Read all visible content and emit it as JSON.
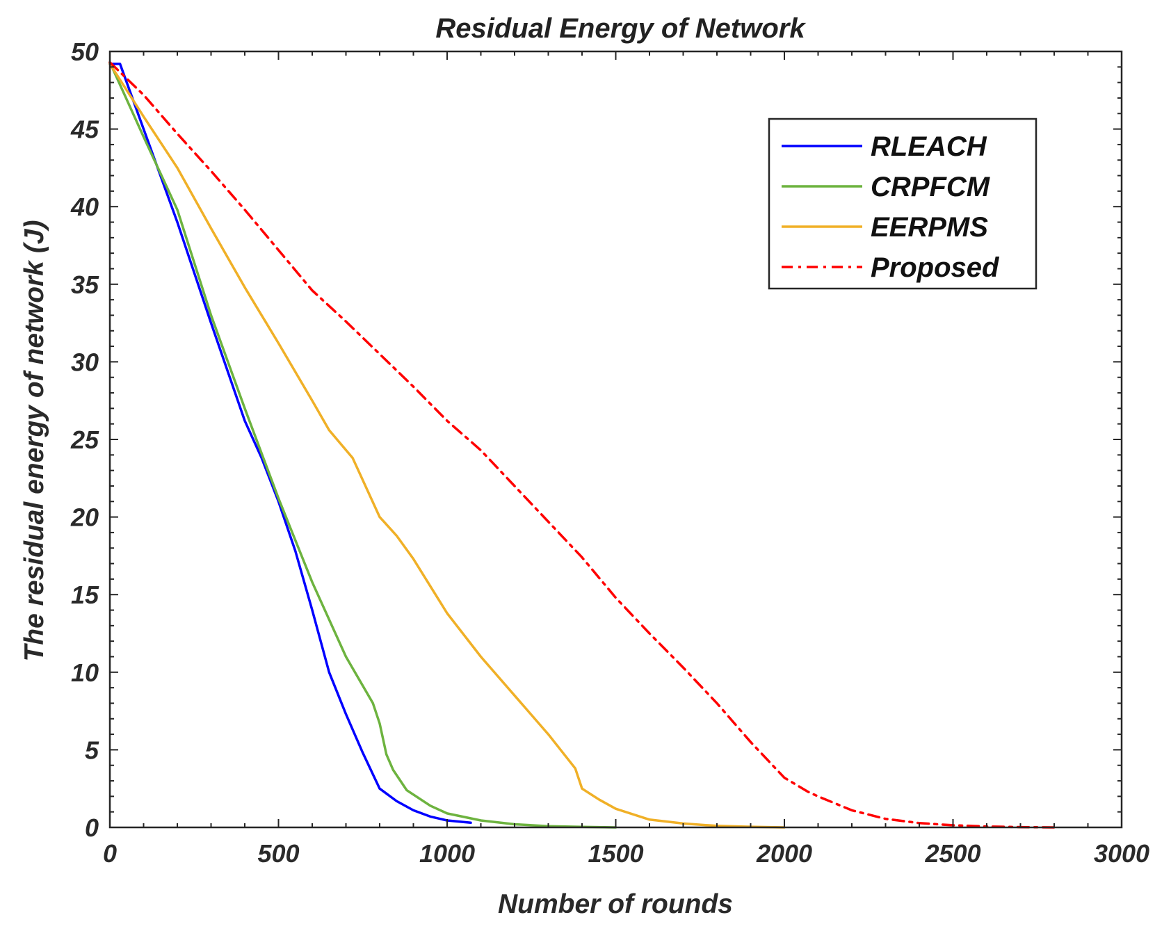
{
  "chart_data": {
    "type": "line",
    "title": "Residual Energy of Network",
    "xlabel": "Number of rounds",
    "ylabel": "The residual energy of network (J)",
    "xlim": [
      0,
      3000
    ],
    "ylim": [
      0,
      50
    ],
    "xticks": [
      0,
      500,
      1000,
      1500,
      2000,
      2500,
      3000
    ],
    "yticks": [
      0,
      5,
      10,
      15,
      20,
      25,
      30,
      35,
      40,
      45,
      50
    ],
    "xtick_labels": [
      "0",
      "500",
      "1000",
      "1500",
      "2000",
      "2500",
      "3000"
    ],
    "ytick_labels": [
      "0",
      "5",
      "10",
      "15",
      "20",
      "25",
      "30",
      "35",
      "40",
      "45",
      "50"
    ],
    "grid": false,
    "legend_position": "top-right",
    "series": [
      {
        "name": "RLEACH",
        "color": "#0000ff",
        "style": "solid",
        "x": [
          0,
          30,
          100,
          200,
          300,
          400,
          450,
          500,
          550,
          600,
          650,
          700,
          750,
          800,
          850,
          900,
          950,
          1000,
          1070
        ],
        "y": [
          49.2,
          49.2,
          45,
          39,
          32.5,
          26.2,
          23.8,
          21,
          17.8,
          14,
          10,
          7.3,
          4.8,
          2.5,
          1.7,
          1.1,
          0.7,
          0.45,
          0.3
        ]
      },
      {
        "name": "CRPFCM",
        "color": "#6db33f",
        "style": "solid",
        "x": [
          0,
          100,
          200,
          300,
          400,
          500,
          600,
          700,
          780,
          800,
          820,
          840,
          880,
          950,
          1000,
          1100,
          1200,
          1300,
          1400,
          1500
        ],
        "y": [
          49.3,
          44.5,
          39.8,
          33,
          27,
          21.2,
          15.8,
          11,
          8,
          6.7,
          4.7,
          3.7,
          2.4,
          1.4,
          0.9,
          0.45,
          0.2,
          0.08,
          0.03,
          0.0
        ]
      },
      {
        "name": "EERPMS",
        "color": "#f0b027",
        "style": "solid",
        "x": [
          0,
          100,
          200,
          300,
          400,
          500,
          600,
          650,
          720,
          800,
          850,
          900,
          1000,
          1100,
          1200,
          1300,
          1380,
          1400,
          1450,
          1500,
          1600,
          1700,
          1800,
          1900,
          2000
        ],
        "y": [
          49.2,
          45.8,
          42.5,
          38.6,
          34.8,
          31.2,
          27.5,
          25.6,
          23.8,
          20,
          18.8,
          17.3,
          13.8,
          11,
          8.5,
          6,
          3.8,
          2.5,
          1.8,
          1.2,
          0.5,
          0.25,
          0.1,
          0.04,
          0.0
        ]
      },
      {
        "name": "Proposed",
        "color": "#ff0000",
        "style": "dashdot",
        "x": [
          0,
          100,
          200,
          300,
          400,
          500,
          600,
          700,
          800,
          900,
          1000,
          1100,
          1200,
          1300,
          1400,
          1500,
          1600,
          1700,
          1800,
          1900,
          2000,
          2070,
          2100,
          2200,
          2300,
          2400,
          2500,
          2600,
          2700,
          2800
        ],
        "y": [
          49.3,
          47.2,
          44.7,
          42.3,
          39.8,
          37.2,
          34.6,
          32.6,
          30.5,
          28.4,
          26.2,
          24.3,
          22,
          19.7,
          17.4,
          14.8,
          12.5,
          10.3,
          8,
          5.5,
          3.2,
          2.3,
          2.0,
          1.1,
          0.55,
          0.28,
          0.14,
          0.06,
          0.02,
          0.0
        ]
      }
    ]
  }
}
